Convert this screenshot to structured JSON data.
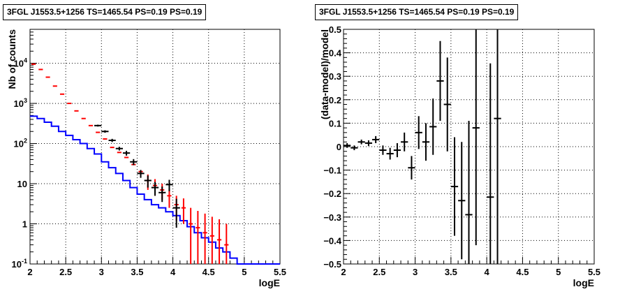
{
  "chart_data": [
    {
      "type": "step",
      "title": "3FGL J1553.5+1256 TS=1465.54 PS=0.19 PS=0.19",
      "xlabel": "logE",
      "ylabel": "Nb of counts",
      "xlim": [
        2,
        5.5
      ],
      "ylim": [
        0.1,
        70000
      ],
      "yscale": "log",
      "grid": true,
      "x_ticks": [
        "2",
        "2.5",
        "3",
        "3.5",
        "4",
        "4.5",
        "5",
        "5.5"
      ],
      "y_ticks": [
        "10^-1",
        "1",
        "10",
        "10^2",
        "10^3",
        "10^4"
      ],
      "bin_edges": [
        2.0,
        2.1,
        2.2,
        2.3,
        2.4,
        2.5,
        2.6,
        2.7,
        2.8,
        2.9,
        3.0,
        3.1,
        3.2,
        3.3,
        3.4,
        3.5,
        3.6,
        3.7,
        3.8,
        3.9,
        4.0,
        4.1,
        4.2,
        4.3,
        4.4,
        4.5,
        4.6,
        4.7,
        4.8,
        4.9,
        5.0,
        5.1,
        5.2,
        5.3,
        5.4,
        5.5
      ],
      "series": [
        {
          "color": "#0000ff",
          "style": "step",
          "values": [
            480,
            420,
            340,
            270,
            200,
            160,
            125,
            100,
            75,
            55,
            35,
            25,
            18,
            12,
            8,
            5.5,
            4,
            3,
            2.5,
            2,
            1.6,
            1.2,
            0.85,
            0.6,
            0.45,
            0.35,
            0.25,
            0.2,
            0.14,
            0.1,
            0.1,
            0.1,
            0.1,
            0.1,
            0.1
          ]
        },
        {
          "color": "#ff0000",
          "style": "error-bars",
          "x": [
            2.05,
            2.15,
            2.25,
            2.35,
            2.45,
            2.55,
            2.65,
            2.75,
            2.85,
            2.95,
            3.05,
            3.15,
            3.25,
            3.35,
            3.45,
            3.55,
            3.65,
            3.75,
            3.85,
            3.95,
            4.05,
            4.15,
            4.25,
            4.35,
            4.45,
            4.55,
            4.65,
            4.75
          ],
          "y": [
            9500,
            7000,
            4500,
            2700,
            1700,
            1000,
            650,
            420,
            280,
            190,
            130,
            80,
            60,
            45,
            30,
            20,
            12,
            9,
            7,
            5,
            3,
            2.5,
            1,
            0.8,
            0.6,
            0.5,
            0.4,
            0.3
          ],
          "err_low": [
            0,
            0,
            0,
            0,
            0,
            0,
            0,
            0,
            0,
            0,
            0,
            0,
            0,
            0,
            0,
            0,
            5,
            4,
            3,
            2.5,
            1.8,
            1.5,
            0.9,
            0.7,
            0.55,
            0.45,
            0.35,
            0.25
          ],
          "err_high": [
            0,
            0,
            0,
            0,
            0,
            0,
            0,
            0,
            0,
            0,
            0,
            0,
            0,
            0,
            0,
            0,
            5,
            4,
            3,
            2.5,
            2,
            1.8,
            1.5,
            1.3,
            1.2,
            1,
            0.9,
            0.7
          ]
        },
        {
          "color": "#000000",
          "style": "error-bars",
          "x": [
            2.95,
            3.05,
            3.15,
            3.25,
            3.35,
            3.45,
            3.55,
            3.65,
            3.75,
            3.85,
            3.95,
            4.05
          ],
          "y": [
            280,
            200,
            120,
            75,
            58,
            35,
            18,
            12,
            8,
            6,
            9.5,
            2.5
          ],
          "err_low": [
            15,
            14,
            11,
            8,
            8,
            6,
            4,
            4,
            3,
            2.5,
            3,
            1.7
          ],
          "err_high": [
            15,
            14,
            11,
            8,
            8,
            6,
            4,
            4,
            3,
            2.5,
            3,
            1.7
          ],
          "xerr": 0.05
        }
      ]
    },
    {
      "type": "scatter",
      "title": "3FGL J1553.5+1256 TS=1465.54 PS=0.19 PS=0.19",
      "xlabel": "logE",
      "ylabel": "(data-model)/model",
      "xlim": [
        2,
        5.5
      ],
      "ylim": [
        -0.5,
        0.5
      ],
      "grid": true,
      "x_ticks": [
        "2",
        "2.5",
        "3",
        "3.5",
        "4",
        "4.5",
        "5",
        "5.5"
      ],
      "y_ticks": [
        "-0.5",
        "-0.4",
        "-0.3",
        "-0.2",
        "-0.1",
        "0",
        "0.1",
        "0.2",
        "0.3",
        "0.4",
        "0.5"
      ],
      "series": [
        {
          "color": "#000000",
          "x": [
            2.05,
            2.15,
            2.25,
            2.35,
            2.45,
            2.55,
            2.65,
            2.75,
            2.85,
            2.95,
            3.05,
            3.15,
            3.25,
            3.35,
            3.45,
            3.55,
            3.65,
            3.75,
            3.85,
            4.05,
            4.15
          ],
          "y": [
            0.005,
            -0.005,
            0.02,
            0.015,
            0.03,
            -0.015,
            -0.03,
            -0.015,
            0.02,
            -0.09,
            0.06,
            0.02,
            0.085,
            0.28,
            0.18,
            -0.17,
            -0.23,
            -0.29,
            0.08,
            -0.215,
            0.12
          ],
          "err": [
            0.01,
            0.01,
            0.01,
            0.012,
            0.015,
            0.02,
            0.025,
            0.03,
            0.04,
            0.05,
            0.07,
            0.08,
            0.12,
            0.17,
            0.2,
            0.21,
            0.25,
            0.4,
            0.5,
            0.57,
            0.65
          ],
          "xerr": 0.05
        }
      ]
    }
  ]
}
